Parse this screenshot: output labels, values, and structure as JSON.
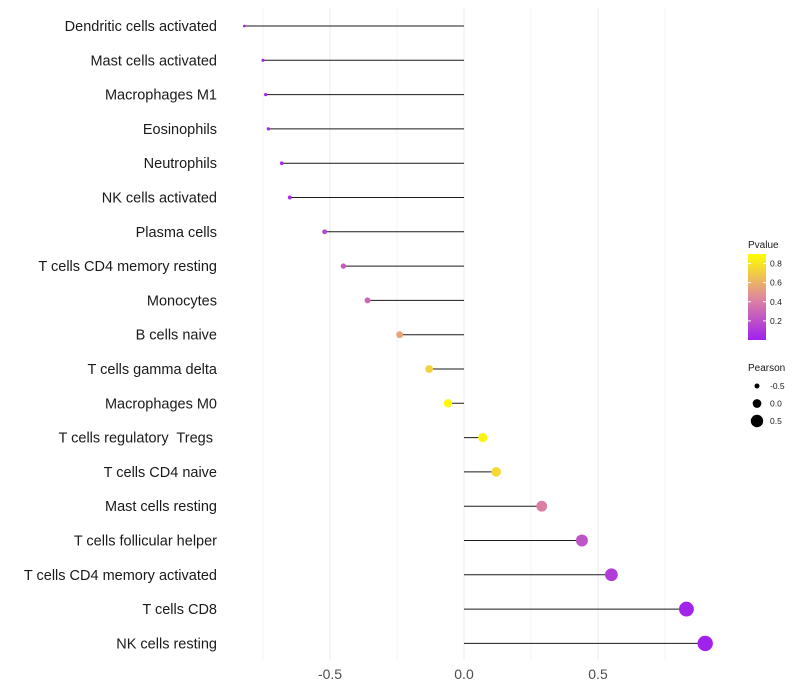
{
  "chart_data": {
    "type": "lollipop",
    "title": "",
    "xlabel": "",
    "ylabel": "",
    "xlim": [
      -0.82,
      0.9
    ],
    "xticks": [
      -0.5,
      0.0,
      0.5
    ],
    "xtick_labels": [
      "-0.5",
      "0.0",
      "0.5"
    ],
    "grid": true,
    "color_encoding": "Pvalue",
    "size_encoding": "Pearson",
    "points": [
      {
        "label": "Dendritic cells activated",
        "pearson": -0.82,
        "pvalue": 0.01
      },
      {
        "label": "Mast cells activated",
        "pearson": -0.75,
        "pvalue": 0.02
      },
      {
        "label": "Macrophages M1",
        "pearson": -0.74,
        "pvalue": 0.02
      },
      {
        "label": "Eosinophils",
        "pearson": -0.73,
        "pvalue": 0.03
      },
      {
        "label": "Neutrophils",
        "pearson": -0.68,
        "pvalue": 0.05
      },
      {
        "label": "NK cells activated",
        "pearson": -0.65,
        "pvalue": 0.06
      },
      {
        "label": "Plasma cells",
        "pearson": -0.52,
        "pvalue": 0.15
      },
      {
        "label": "T cells CD4 memory resting",
        "pearson": -0.45,
        "pvalue": 0.25
      },
      {
        "label": "Monocytes",
        "pearson": -0.36,
        "pvalue": 0.3
      },
      {
        "label": "B cells naive",
        "pearson": -0.24,
        "pvalue": 0.55
      },
      {
        "label": "T cells gamma delta",
        "pearson": -0.13,
        "pvalue": 0.72
      },
      {
        "label": "Macrophages M0",
        "pearson": -0.06,
        "pvalue": 0.88
      },
      {
        "label": "T cells regulatory  Tregs ",
        "pearson": 0.07,
        "pvalue": 0.85
      },
      {
        "label": "T cells CD4 naive",
        "pearson": 0.12,
        "pvalue": 0.75
      },
      {
        "label": "Mast cells resting",
        "pearson": 0.29,
        "pvalue": 0.4
      },
      {
        "label": "T cells follicular helper",
        "pearson": 0.44,
        "pvalue": 0.22
      },
      {
        "label": "T cells CD4 memory activated",
        "pearson": 0.55,
        "pvalue": 0.12
      },
      {
        "label": "T cells CD8",
        "pearson": 0.83,
        "pvalue": 0.02
      },
      {
        "label": "NK cells resting",
        "pearson": 0.9,
        "pvalue": 0.01
      }
    ],
    "legend_color": {
      "title": "Pvalue",
      "ticks": [
        0.8,
        0.6,
        0.4,
        0.2
      ],
      "tick_labels": [
        "0.8",
        "0.6",
        "0.4",
        "0.2"
      ],
      "low_color": "#a020f0",
      "mid_color": "#e08a9a",
      "high_color": "#ffff00",
      "range": [
        0.0,
        0.9
      ]
    },
    "legend_size": {
      "title": "Pearson",
      "values": [
        -0.5,
        0.0,
        0.5
      ],
      "labels": [
        "-0.5",
        "0.0",
        "0.5"
      ]
    },
    "colors": {
      "segment": "#1a1a1a",
      "grid": "#ebebeb"
    }
  }
}
